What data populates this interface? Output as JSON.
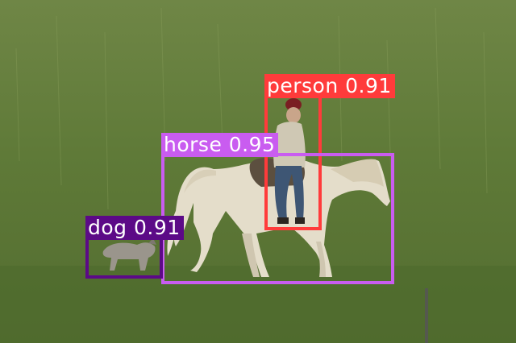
{
  "image": {
    "description_icon": "photo-horse-rider-dog-field",
    "colors": {
      "grass_light": "#7d9450",
      "grass_mid": "#5f7a38",
      "grass_dark": "#47612a",
      "horse": "#e4ddca",
      "horse_shadow": "#b9b09a",
      "jacket": "#cfc8b4",
      "jeans": "#3e5674",
      "hat": "#7a1e22",
      "dog": "#9a958c"
    }
  },
  "detections": [
    {
      "id": "person",
      "label": "person",
      "score": "0.91",
      "color": "#ff3b3b"
    },
    {
      "id": "horse",
      "label": "horse",
      "score": "0.95",
      "color": "#c95cf0"
    },
    {
      "id": "dog",
      "label": "dog",
      "score": "0.91",
      "color": "#5c0a87"
    }
  ]
}
